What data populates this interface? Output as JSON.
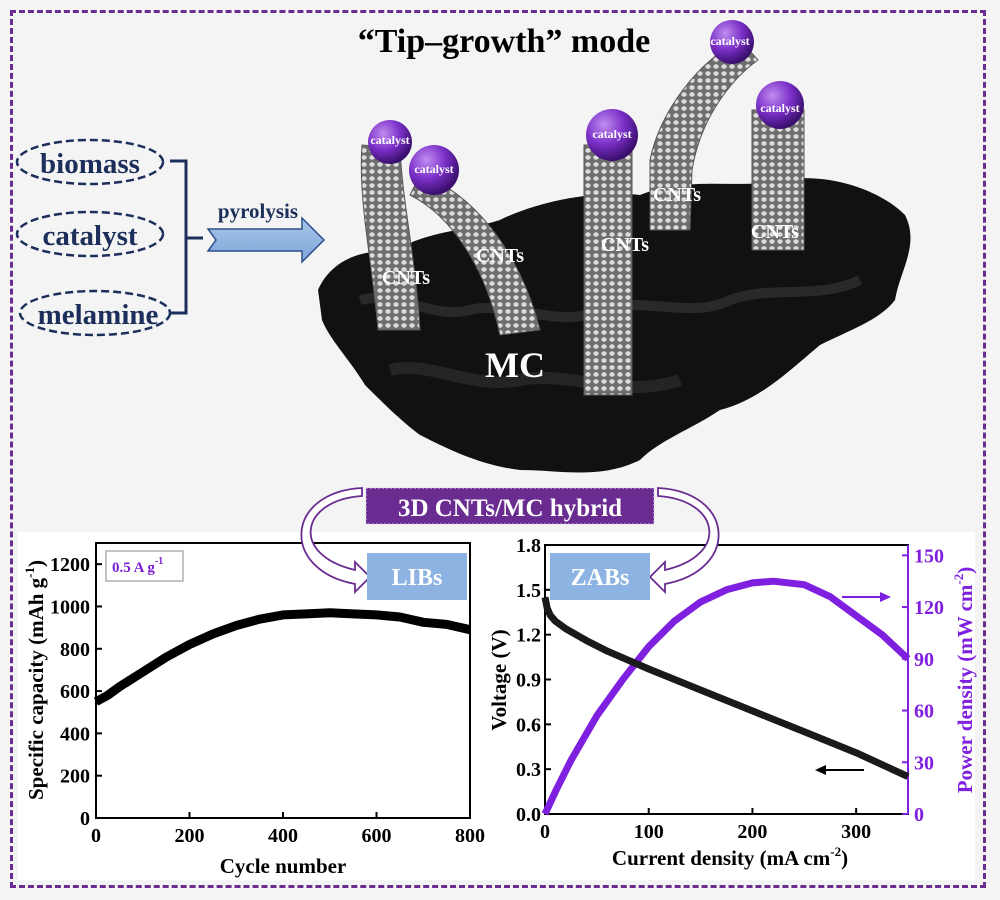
{
  "title": "“Tip–growth” mode",
  "precursors": [
    "biomass",
    "catalyst",
    "melamine"
  ],
  "process_label": "pyrolysis",
  "illustration": {
    "catalyst_labels": [
      "catalyst",
      "catalyst",
      "catalyst",
      "catalyst",
      "catalyst"
    ],
    "cnt_labels": [
      "CNTs",
      "CNTs",
      "CNTs",
      "CNTs",
      "CNTs"
    ],
    "substrate_label": "MC"
  },
  "hybrid_label": "3D CNTs/MC hybrid",
  "applications": [
    "LIBs",
    "ZABs"
  ],
  "colors": {
    "frame": "#6a2c91",
    "precursor_text": "#1b2f5a",
    "arrow_fill": "#8fb3e0",
    "hybrid_bg": "#6a2c91",
    "app_box": "#8db3e2",
    "power_series": "#7f1fe0",
    "voltage_series": "#111111"
  },
  "chart_data": [
    {
      "type": "line",
      "name": "LIBs cycling",
      "annotation": "0.5 A g",
      "annotation_sup": "-1",
      "xlabel": "Cycle number",
      "ylabel": "Specific capacity (mAh g",
      "ylabel_sup": "-1",
      "ylabel_end": ")",
      "xlim": [
        0,
        800
      ],
      "ylim": [
        0,
        1300
      ],
      "xticks": [
        0,
        200,
        400,
        600,
        800
      ],
      "yticks": [
        0,
        200,
        400,
        600,
        800,
        1000,
        1200
      ],
      "series": [
        {
          "name": "Specific capacity",
          "x": [
            0,
            25,
            50,
            100,
            150,
            200,
            250,
            300,
            350,
            400,
            450,
            500,
            550,
            600,
            650,
            700,
            750,
            800
          ],
          "y": [
            550,
            580,
            620,
            690,
            760,
            820,
            870,
            910,
            940,
            960,
            965,
            970,
            965,
            960,
            950,
            925,
            915,
            890
          ]
        }
      ]
    },
    {
      "type": "line",
      "name": "ZABs polarization",
      "xlabel": "Current density (mA cm",
      "xlabel_sup": "-2",
      "xlabel_end": ")",
      "ylabel": "Voltage (V)",
      "y2label": "Power density (mW cm",
      "y2label_sup": "-2",
      "y2label_end": ")",
      "xlim": [
        0,
        350
      ],
      "ylim": [
        0,
        1.8
      ],
      "y2lim": [
        0,
        156
      ],
      "xticks": [
        0,
        100,
        200,
        300
      ],
      "yticks": [
        "0.0",
        "0.3",
        "0.6",
        "0.9",
        "1.2",
        "1.5",
        "1.8"
      ],
      "y2ticks": [
        0,
        30,
        60,
        90,
        120,
        150
      ],
      "series": [
        {
          "name": "Voltage",
          "axis": "left",
          "x": [
            0,
            2,
            5,
            10,
            20,
            40,
            60,
            80,
            100,
            150,
            200,
            250,
            300,
            350
          ],
          "y": [
            1.45,
            1.38,
            1.33,
            1.29,
            1.24,
            1.16,
            1.09,
            1.03,
            0.97,
            0.83,
            0.69,
            0.55,
            0.41,
            0.25
          ]
        },
        {
          "name": "Power density",
          "axis": "right",
          "x": [
            0,
            10,
            25,
            50,
            75,
            100,
            125,
            150,
            175,
            200,
            220,
            250,
            275,
            300,
            325,
            350
          ],
          "y": [
            0,
            13,
            31,
            57,
            78,
            97,
            112,
            123,
            130,
            134,
            135,
            133,
            126,
            115,
            104,
            90
          ]
        }
      ]
    }
  ]
}
